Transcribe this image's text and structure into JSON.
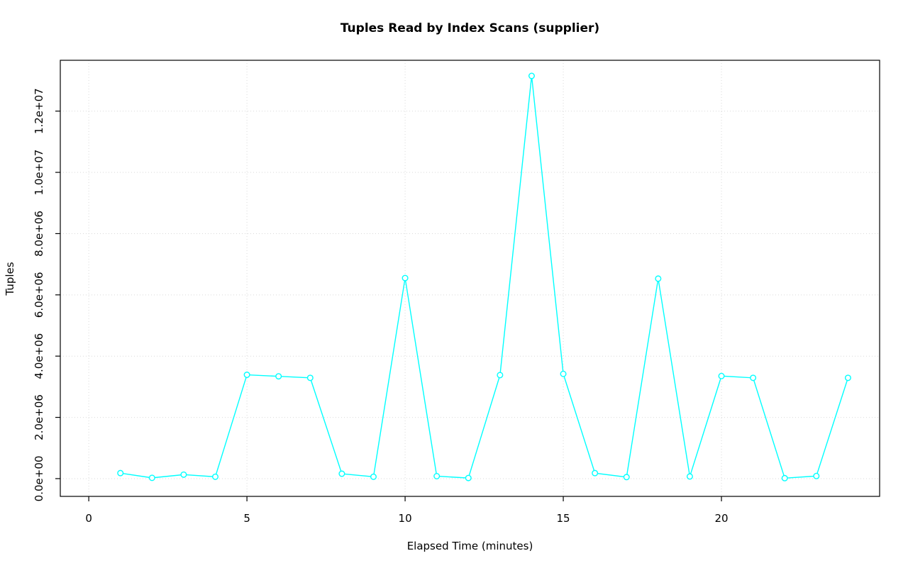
{
  "chart_data": {
    "type": "line",
    "title": "Tuples Read by Index Scans (supplier)",
    "xlabel": "Elapsed Time (minutes)",
    "ylabel": "Tuples",
    "x": [
      1,
      2,
      3,
      4,
      5,
      6,
      7,
      8,
      9,
      10,
      11,
      12,
      13,
      14,
      15,
      16,
      17,
      18,
      19,
      20,
      21,
      22,
      23,
      24
    ],
    "y": [
      180000,
      25000,
      130000,
      60000,
      3390000,
      3340000,
      3290000,
      160000,
      60000,
      6550000,
      80000,
      20000,
      3380000,
      13150000,
      3420000,
      180000,
      50000,
      6530000,
      70000,
      3350000,
      3290000,
      15000,
      85000,
      3290000
    ],
    "xlim": [
      -0.9,
      25.0
    ],
    "ylim": [
      -580000,
      13660000
    ],
    "xticks": [
      0,
      5,
      10,
      15,
      20
    ],
    "xtick_labels": [
      "0",
      "5",
      "10",
      "15",
      "20"
    ],
    "yticks": [
      0,
      2000000,
      4000000,
      6000000,
      8000000,
      10000000,
      12000000
    ],
    "ytick_labels": [
      "0.0e+00",
      "2.0e+06",
      "4.0e+06",
      "6.0e+06",
      "8.0e+06",
      "1.0e+07",
      "1.2e+07"
    ],
    "grid": true,
    "legend": "none",
    "marker": "open-circle",
    "colors": {
      "line": "#00FFFF",
      "grid": "#D9D9D9",
      "axis": "#000000",
      "background": "#FFFFFF"
    }
  }
}
